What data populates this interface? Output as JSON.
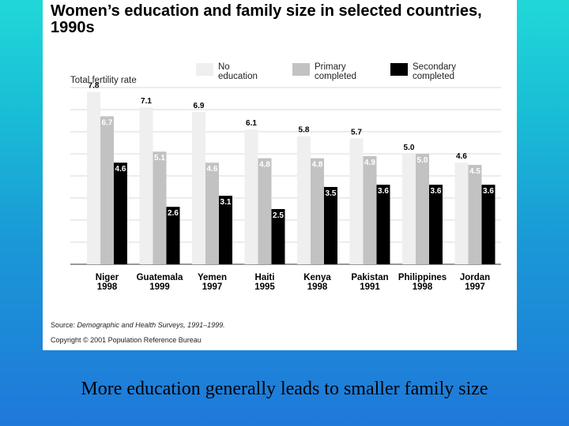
{
  "colors": {
    "no_education": "#efefef",
    "primary": "#c2c2c2",
    "secondary": "#000000",
    "gridline": "#d8d8d8"
  },
  "chart_data": {
    "type": "bar",
    "title": "Women’s education and family size in selected countries, 1990s",
    "ylabel": "Total fertility rate",
    "ylim": [
      0,
      8
    ],
    "grid": true,
    "legend_position": "top",
    "categories": [
      [
        "Niger",
        "1998"
      ],
      [
        "Guatemala",
        "1999"
      ],
      [
        "Yemen",
        "1997"
      ],
      [
        "Haiti",
        "1995"
      ],
      [
        "Kenya",
        "1998"
      ],
      [
        "Pakistan",
        "1991"
      ],
      [
        "Philippines",
        "1998"
      ],
      [
        "Jordan",
        "1997"
      ]
    ],
    "series": [
      {
        "name": "No\neducation",
        "values": [
          7.8,
          7.1,
          6.9,
          6.1,
          5.8,
          5.7,
          5.0,
          4.6
        ]
      },
      {
        "name": "Primary\ncompleted",
        "values": [
          6.7,
          5.1,
          4.6,
          4.8,
          4.8,
          4.9,
          5.0,
          4.5
        ]
      },
      {
        "name": "Secondary\ncompleted",
        "values": [
          4.6,
          2.6,
          3.1,
          2.5,
          3.5,
          3.6,
          3.6,
          3.6
        ]
      }
    ]
  },
  "source": {
    "prefix": "Source: ",
    "text": "Demographic and Health Surveys, 1991–1999."
  },
  "copyright": "Copyright © 2001 Population Reference Bureau",
  "caption": "More education generally leads to smaller family size"
}
